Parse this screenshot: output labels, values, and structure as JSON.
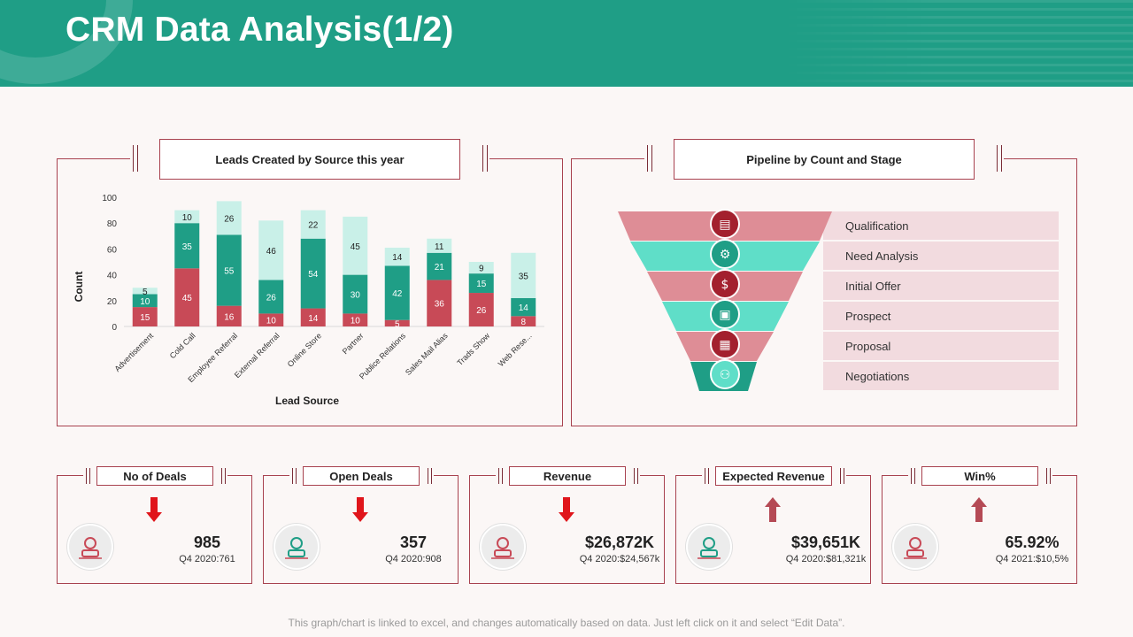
{
  "header": {
    "title": "CRM Data Analysis(1/2)"
  },
  "leads_panel": {
    "title": "Leads Created by Source this year"
  },
  "pipeline_panel": {
    "title": "Pipeline by Count and Stage",
    "stages": [
      {
        "label": "Qualification",
        "color": "#de8d96",
        "icon": "certificate-icon"
      },
      {
        "label": "Need Analysis",
        "color": "#5fdec8",
        "icon": "gears-icon"
      },
      {
        "label": "Initial Offer",
        "color": "#de8d96",
        "icon": "money-bag-icon"
      },
      {
        "label": "Prospect",
        "color": "#5fdec8",
        "icon": "dollar-bill-icon"
      },
      {
        "label": "Proposal",
        "color": "#de8d96",
        "icon": "document-icon"
      },
      {
        "label": "Negotiations",
        "color": "#1f9e86",
        "icon": "handshake-icon"
      }
    ]
  },
  "chart_data": {
    "type": "bar",
    "stacked": true,
    "categories": [
      "Advertisement",
      "Cold Call",
      "Employee Referral",
      "External Referral",
      "Online Store",
      "Partner",
      "Publice Relations",
      "Sales Mail Alias",
      "Trads Show",
      "Web Rese..."
    ],
    "series": [
      {
        "name": "",
        "color": "#c84a57",
        "values": [
          15,
          45,
          16,
          10,
          14,
          10,
          5,
          36,
          26,
          8
        ]
      },
      {
        "name": "",
        "color": "#1f9e86",
        "values": [
          10,
          35,
          55,
          26,
          54,
          30,
          42,
          21,
          15,
          14
        ]
      },
      {
        "name": "",
        "color": "#c9f0e8",
        "values": [
          5,
          10,
          26,
          46,
          22,
          45,
          14,
          11,
          9,
          35
        ]
      }
    ],
    "xlabel": "Lead Source",
    "ylabel": "Count",
    "ylim": [
      0,
      100
    ],
    "yticks": [
      "0",
      "20",
      "40",
      "60",
      "80",
      "100"
    ],
    "grid": false
  },
  "kpis": [
    {
      "label": "No of Deals",
      "value": "985",
      "sub": "Q4 2020:761",
      "trend": "down",
      "icon": "team-icon"
    },
    {
      "label": "Open Deals",
      "value": "357",
      "sub": "Q4 2020:908",
      "trend": "down",
      "icon": "gear-money-icon"
    },
    {
      "label": "Revenue",
      "value": "$26,872K",
      "sub": "Q4 2020:$24,567k",
      "trend": "down",
      "icon": "revenue-icon"
    },
    {
      "label": "Expected Revenue",
      "value": "$39,651K",
      "sub": "Q4 2020:$81,321k",
      "trend": "up",
      "icon": "growth-chart-icon"
    },
    {
      "label": "Win%",
      "value": "65.92%",
      "sub": "Q4 2021:$10,5%",
      "trend": "up",
      "icon": "dollar-coin-icon"
    }
  ],
  "colors": {
    "accent": "#1f9e86",
    "red": "#c84a57",
    "down_arrow": "#e0151b",
    "up_arrow": "#b54a55",
    "border": "#a8424f"
  },
  "footer": {
    "note": "This graph/chart is linked to excel, and changes automatically based on data. Just left click on it and select “Edit Data”."
  }
}
